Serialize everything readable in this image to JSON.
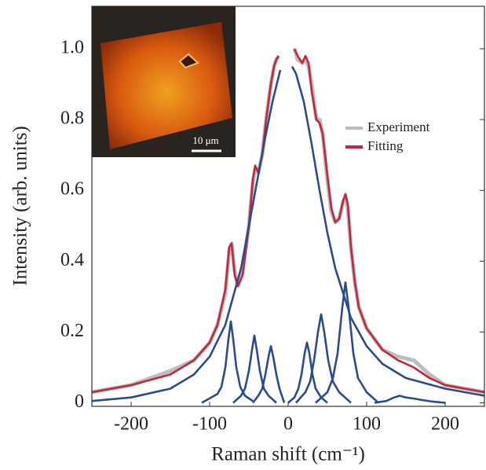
{
  "chart_data": {
    "type": "line",
    "xlabel": "Raman shift (cm⁻¹)",
    "ylabel": "Intensity (arb. units)",
    "inset_scale_bar": "10 μm",
    "xlim": [
      -250,
      250
    ],
    "ylim": [
      -0.01,
      1.12
    ],
    "xticks": [
      -200,
      -100,
      0,
      100,
      200
    ],
    "yticks": [
      0,
      0.2,
      0.4,
      0.6,
      0.8,
      {
        "value": 1,
        "label": "1.0"
      }
    ],
    "series": [
      {
        "name": "Experiment",
        "color": "#bdbdbd",
        "x": [
          -250,
          -200,
          -150,
          -120,
          -100,
          -90,
          -80,
          -75,
          -72,
          -68,
          -64,
          -58,
          -50,
          -45,
          -42,
          -38,
          -33,
          -28,
          -22,
          -18,
          -15,
          -12,
          0,
          8,
          12,
          18,
          22,
          26,
          30,
          36,
          40,
          44,
          50,
          55,
          60,
          65,
          70,
          73,
          76,
          80,
          85,
          90,
          100,
          120,
          140,
          160,
          180,
          200,
          250
        ],
        "values": [
          0.03,
          0.05,
          0.09,
          0.12,
          0.17,
          0.22,
          0.31,
          0.43,
          0.45,
          0.37,
          0.33,
          0.37,
          0.5,
          0.62,
          0.66,
          0.65,
          0.7,
          0.8,
          0.9,
          0.95,
          0.97,
          0.98,
          null,
          1.0,
          0.97,
          0.96,
          0.97,
          0.95,
          0.9,
          0.8,
          0.8,
          0.76,
          0.63,
          0.54,
          0.51,
          0.52,
          0.57,
          0.58,
          0.55,
          0.44,
          0.34,
          0.27,
          0.21,
          0.15,
          0.13,
          0.12,
          0.08,
          0.05,
          0.03
        ]
      },
      {
        "name": "Fitting",
        "color": "#c0283e",
        "x": [
          -250,
          -200,
          -150,
          -120,
          -100,
          -90,
          -80,
          -75,
          -72,
          -68,
          -64,
          -58,
          -50,
          -45,
          -42,
          -38,
          -33,
          -28,
          -22,
          -18,
          -15,
          -12,
          0,
          8,
          12,
          18,
          22,
          26,
          30,
          36,
          40,
          44,
          50,
          55,
          60,
          65,
          70,
          73,
          76,
          80,
          85,
          90,
          100,
          120,
          140,
          160,
          180,
          200,
          250
        ],
        "values": [
          0.03,
          0.05,
          0.08,
          0.12,
          0.17,
          0.22,
          0.32,
          0.44,
          0.45,
          0.36,
          0.33,
          0.36,
          0.5,
          0.63,
          0.67,
          0.65,
          0.7,
          0.8,
          0.9,
          0.95,
          0.97,
          0.98,
          null,
          1.0,
          0.98,
          0.96,
          0.98,
          0.96,
          0.88,
          0.8,
          0.79,
          0.76,
          0.64,
          0.55,
          0.51,
          0.52,
          0.57,
          0.59,
          0.56,
          0.44,
          0.34,
          0.27,
          0.21,
          0.15,
          0.12,
          0.1,
          0.07,
          0.05,
          0.03
        ]
      },
      {
        "color": "#2b4c8c",
        "x": [
          -250,
          -200,
          -150,
          -120,
          -100,
          -80,
          -60,
          -50,
          -40,
          -30,
          -20,
          -10
        ],
        "values": [
          0.005,
          0.015,
          0.04,
          0.08,
          0.13,
          0.22,
          0.38,
          0.5,
          0.62,
          0.74,
          0.85,
          0.94
        ]
      },
      {
        "color": "#2b4c8c",
        "x": [
          5,
          10,
          20,
          30,
          40,
          50,
          60,
          80,
          100,
          120,
          150,
          200,
          250
        ],
        "values": [
          0.95,
          0.93,
          0.85,
          0.73,
          0.6,
          0.48,
          0.38,
          0.24,
          0.16,
          0.11,
          0.07,
          0.04,
          0.02
        ]
      },
      {
        "color": "#2b4c8c",
        "x": [
          -110,
          -90,
          -85,
          -80,
          -76,
          -73,
          -70,
          -66,
          -61,
          -55,
          -45
        ],
        "values": [
          0,
          0.025,
          0.045,
          0.1,
          0.18,
          0.23,
          0.18,
          0.1,
          0.045,
          0.02,
          0.005
        ]
      },
      {
        "color": "#2b4c8c",
        "x": [
          -70,
          -60,
          -55,
          -50,
          -46,
          -43,
          -40,
          -36,
          -31,
          -25,
          -15
        ],
        "values": [
          0,
          0.02,
          0.04,
          0.09,
          0.15,
          0.19,
          0.15,
          0.09,
          0.04,
          0.02,
          0
        ]
      },
      {
        "color": "#2b4c8c",
        "x": [
          -45,
          -38,
          -33,
          -29,
          -25,
          -22,
          -19,
          -15,
          -11,
          -5
        ],
        "values": [
          0,
          0.02,
          0.04,
          0.08,
          0.13,
          0.16,
          0.13,
          0.08,
          0.04,
          0
        ]
      },
      {
        "color": "#2b4c8c",
        "x": [
          0,
          8,
          13,
          17,
          21,
          24,
          27,
          31,
          35,
          42,
          50
        ],
        "values": [
          0,
          0.015,
          0.04,
          0.08,
          0.14,
          0.17,
          0.14,
          0.08,
          0.04,
          0.015,
          0
        ]
      },
      {
        "color": "#2b4c8c",
        "x": [
          10,
          22,
          28,
          33,
          38,
          42,
          46,
          51,
          57,
          65,
          80
        ],
        "values": [
          0,
          0.03,
          0.06,
          0.12,
          0.2,
          0.25,
          0.2,
          0.12,
          0.06,
          0.03,
          0
        ]
      },
      {
        "color": "#2b4c8c",
        "x": [
          35,
          50,
          57,
          63,
          69,
          73,
          77,
          83,
          89,
          100,
          115
        ],
        "values": [
          0,
          0.03,
          0.07,
          0.14,
          0.27,
          0.34,
          0.27,
          0.14,
          0.07,
          0.03,
          0
        ]
      },
      {
        "color": "#2b4c8c",
        "x": [
          110,
          125,
          135,
          142,
          150,
          160,
          170,
          185,
          200
        ],
        "values": [
          0,
          0.005,
          0.015,
          0.02,
          0.015,
          0.012,
          0.008,
          0.003,
          0
        ]
      }
    ]
  }
}
